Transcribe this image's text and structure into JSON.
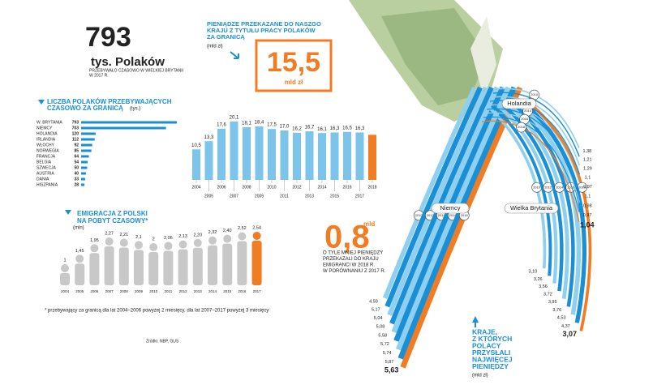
{
  "header": {
    "number": "793",
    "unit": "tys. Polaków",
    "note": [
      "PRZEBYWAŁO CZASOWO W WIELKIEJ BRYTANII",
      "W 2017 R."
    ]
  },
  "remittance_note": {
    "title": [
      "PIENIĄDZE PRZEKAZANE DO NASZGO",
      "KRAJU Z TYTUŁU PRACY POLAKÓW",
      "ZA GRANICĄ"
    ],
    "unit": "(mld zł)",
    "highlight": "15,5",
    "highlight_unit": "mld zł"
  },
  "drop_note": {
    "value": "0,8",
    "unit": [
      "mld",
      "zł"
    ],
    "text": [
      "O TYLE MNIEJ PIENIĘDZY",
      "PRZEKAZALI DO KRAJU",
      "EMIGRANCI W 2018 R.",
      "W PORÓWNANIU Z 2017 R."
    ]
  },
  "countries_note": {
    "title": [
      "KRAJE,",
      "Z KTÓRYCH",
      "POLACY",
      "PRZYSŁALI",
      "NAJWIĘCEJ",
      "PIENIĘDZY"
    ],
    "unit": "(mld zł)"
  },
  "footnote": "* przebywający za granicą dla lat 2004–2006 powyżej 2 miesięcy, dla lat 2007–2017 powyżej 3 miesięcy",
  "source": "Źródło: NBP, GUS",
  "chart_data": [
    {
      "type": "hbar",
      "title": [
        "LICZBA POLAKÓW PRZEBYWAJĄCYCH",
        "CZASOWO ZA GRANICĄ"
      ],
      "unit": "(tys.)",
      "color": "#1a8fd6",
      "categories": [
        "W. BRYTANIA",
        "NIEMCY",
        "HOLANDIA",
        "IRLANDIA",
        "WŁOCHY",
        "NORWEGIA",
        "FRANCJA",
        "BELGIA",
        "SZWECJA",
        "AUSTRIA",
        "DANIA",
        "HISZPANIA"
      ],
      "values": [
        793,
        703,
        120,
        112,
        92,
        85,
        64,
        54,
        50,
        40,
        33,
        28
      ]
    },
    {
      "type": "bar",
      "ylim": [
        0,
        22
      ],
      "categories": [
        "2004",
        "2005",
        "2006",
        "2007",
        "2008",
        "2009",
        "2010",
        "2011",
        "2012",
        "2013",
        "2014",
        "2015",
        "2016",
        "2017",
        "2018"
      ],
      "values": [
        10.5,
        13.3,
        17.6,
        20.1,
        18.1,
        18.4,
        17.5,
        17.0,
        16.2,
        16.7,
        16.1,
        16.3,
        16.5,
        16.3,
        15.5
      ],
      "value_labels": [
        "10,5",
        "13,3",
        "17,6",
        "20,1",
        "18,1",
        "18,4",
        "17,5",
        "17,0",
        "16,2",
        "16,7",
        "16,1",
        "16,3",
        "16,5",
        "16,3",
        null
      ],
      "colors": [
        "#7cc4ea",
        "#7cc4ea",
        "#7cc4ea",
        "#7cc4ea",
        "#7cc4ea",
        "#7cc4ea",
        "#7cc4ea",
        "#7cc4ea",
        "#7cc4ea",
        "#7cc4ea",
        "#7cc4ea",
        "#7cc4ea",
        "#7cc4ea",
        "#7cc4ea",
        "#f07d23"
      ]
    },
    {
      "type": "pictogram",
      "title": [
        "EMIGRACJA Z POLSKI",
        "NA POBYT CZASOWY*"
      ],
      "unit": "(mln)",
      "categories": [
        "2004",
        "2005",
        "2006",
        "2007",
        "2008",
        "2009",
        "2010",
        "2011",
        "2012",
        "2013",
        "2014",
        "2015",
        "2016",
        "2017"
      ],
      "values": [
        1,
        1.45,
        1.95,
        2.27,
        2.21,
        2.1,
        2,
        2.06,
        2.13,
        2.2,
        2.32,
        2.4,
        2.52,
        2.54
      ],
      "value_labels": [
        "1",
        "1,45",
        "1,95",
        "2,27",
        "2,21",
        "2,1",
        "2",
        "2,06",
        "2,13",
        "2,20",
        "2,32",
        "2,40",
        "2,52",
        "2,54"
      ],
      "colors": [
        "#c8c8c8",
        "#c8c8c8",
        "#c8c8c8",
        "#c8c8c8",
        "#c8c8c8",
        "#c8c8c8",
        "#c8c8c8",
        "#c8c8c8",
        "#c8c8c8",
        "#c8c8c8",
        "#c8c8c8",
        "#c8c8c8",
        "#c8c8c8",
        "#f07d23"
      ]
    },
    {
      "type": "curves",
      "categories": [
        "2010",
        null,
        "2012",
        null,
        "2014",
        null,
        "2016",
        null,
        "2018"
      ],
      "colors": [
        "#8fd0f0",
        "#1a8fd6",
        "#8fd0f0",
        "#1a8fd6",
        "#8fd0f0",
        "#1a8fd6",
        "#8fd0f0",
        "#1a8fd6",
        "#f07d23"
      ],
      "series": [
        {
          "name": "Niemcy",
          "values": [
            4.59,
            5.17,
            5.04,
            5.08,
            5.58,
            5.72,
            5.74,
            5.87,
            5.63
          ],
          "value_labels": [
            "4,59",
            "5,17",
            "5,04",
            "5,08",
            "5,58",
            "5,72",
            "5,74",
            "5,87",
            "5,63"
          ]
        },
        {
          "name": "Wielka Brytania",
          "values": [
            3.1,
            3.26,
            3.56,
            3.72,
            3.95,
            3.76,
            4.53,
            4.37,
            3.07
          ],
          "value_labels": [
            "3,10",
            "3,26",
            "3,56",
            "3,72",
            "3,95",
            "3,76",
            "4,53",
            "4,37",
            "3,07"
          ]
        },
        {
          "name": "Holandia",
          "values": [
            1.38,
            1.21,
            1.29,
            1.1,
            0.97,
            1.1,
            0.98,
            0.97,
            1.04
          ],
          "value_labels": [
            "1,38",
            "1,21",
            "1,29",
            "1,1",
            "0,97",
            "1,1",
            "0,98",
            "0,97",
            "1,04"
          ]
        }
      ]
    }
  ]
}
